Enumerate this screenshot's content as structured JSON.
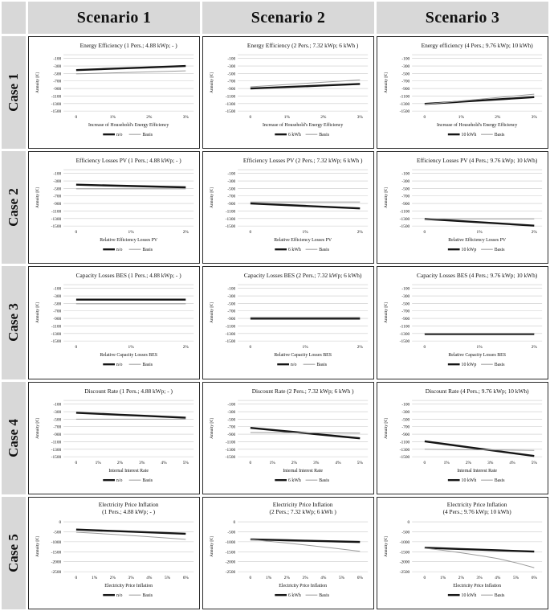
{
  "header": {
    "scenarios": [
      "Scenario 1",
      "Scenario 2",
      "Scenario 3"
    ]
  },
  "cases": [
    "Case 1",
    "Case 2",
    "Case 3",
    "Case 4",
    "Case 5"
  ],
  "colors": {
    "header_bg": "#d8d8d8",
    "panel_border": "#2a2a2a",
    "gridline": "#c9c9c9",
    "series_black": "#151515",
    "series_basis": "#9b9b9b"
  },
  "chart_data": [
    {
      "type": "line",
      "title": "Energy Efficiency (1 Pers.; 4.88 kWp; - )",
      "xlabel": "Increase of Household's Energy Efficiency",
      "ylabel": "Annuity [€]",
      "x": [
        "0",
        "1%",
        "2%",
        "3%"
      ],
      "yticks": [
        -100,
        -300,
        -500,
        -700,
        -900,
        -1100,
        -1300,
        -1500
      ],
      "ylim": [
        0,
        -1500
      ],
      "series": [
        {
          "name": "n/o",
          "color": "#151515",
          "width": 2.4,
          "values": [
            -410,
            -373,
            -337,
            -300
          ]
        },
        {
          "name": "Basis",
          "color": "#9b9b9b",
          "width": 1,
          "values": [
            -510,
            -483,
            -457,
            -430
          ]
        }
      ]
    },
    {
      "type": "line",
      "title": "Energy Efficiency (2 Pers.; 7.32 kWp; 6 kWh )",
      "xlabel": "Increase of Household's Energy Efficiency",
      "ylabel": "Annuity [€]",
      "x": [
        "0",
        "1%",
        "2%",
        "3%"
      ],
      "yticks": [
        -100,
        -300,
        -500,
        -700,
        -900,
        -1100,
        -1300,
        -1500
      ],
      "ylim": [
        0,
        -1500
      ],
      "series": [
        {
          "name": "6 kWh",
          "color": "#151515",
          "width": 2.4,
          "values": [
            -900,
            -860,
            -820,
            -780
          ]
        },
        {
          "name": "Basis",
          "color": "#9b9b9b",
          "width": 1,
          "values": [
            -855,
            -793,
            -732,
            -670
          ]
        }
      ]
    },
    {
      "type": "line",
      "title": "Energy efficiency (4 Pers.; 9.76 kWp; 10 kWh)",
      "xlabel": "Increase of Household's Energy Efficiency",
      "ylabel": "Annuity [€]",
      "x": [
        "0",
        "1%",
        "2%",
        "3%"
      ],
      "yticks": [
        -100,
        -300,
        -500,
        -700,
        -900,
        -1100,
        -1300,
        -1500
      ],
      "ylim": [
        0,
        -1500
      ],
      "series": [
        {
          "name": "10 kWh",
          "color": "#151515",
          "width": 2.4,
          "values": [
            -1310,
            -1250,
            -1190,
            -1130
          ]
        },
        {
          "name": "Basis",
          "color": "#9b9b9b",
          "width": 1,
          "values": [
            -1320,
            -1230,
            -1140,
            -1050
          ]
        }
      ]
    },
    {
      "type": "line",
      "title": "Efficiency Losses PV (1 Pers.; 4.88 kWp; - )",
      "xlabel": "Relative Efficiency Losses PV",
      "ylabel": "Annuity [€]",
      "x": [
        "0",
        "1%",
        "2%"
      ],
      "yticks": [
        -100,
        -300,
        -500,
        -700,
        -900,
        -1100,
        -1300,
        -1500
      ],
      "ylim": [
        0,
        -1500
      ],
      "series": [
        {
          "name": "n/o",
          "color": "#151515",
          "width": 2.4,
          "values": [
            -400,
            -435,
            -470
          ]
        },
        {
          "name": "Basis",
          "color": "#9b9b9b",
          "width": 1,
          "values": [
            -510,
            -510,
            -510
          ]
        }
      ]
    },
    {
      "type": "line",
      "title": "Efficiency Losses PV (2 Pers.; 7.32 kWp; 6 kWh )",
      "xlabel": "Relative Efficiency Losses PV",
      "ylabel": "Annuity [€]",
      "x": [
        "0",
        "1%",
        "2%"
      ],
      "yticks": [
        -100,
        -300,
        -500,
        -700,
        -900,
        -1100,
        -1300,
        -1500
      ],
      "ylim": [
        0,
        -1500
      ],
      "series": [
        {
          "name": "6 kWh",
          "color": "#151515",
          "width": 2.4,
          "values": [
            -900,
            -965,
            -1030
          ]
        },
        {
          "name": "Basis",
          "color": "#9b9b9b",
          "width": 1,
          "values": [
            -860,
            -860,
            -860
          ]
        }
      ]
    },
    {
      "type": "line",
      "title": "Efficiency Losses PV (4 Pers.; 9.76 kWp; 10 kWh)",
      "xlabel": "Relative Efficiency Losses PV",
      "ylabel": "Annuity [€]",
      "x": [
        "0",
        "1%",
        "2%"
      ],
      "yticks": [
        -100,
        -300,
        -500,
        -700,
        -900,
        -1100,
        -1300,
        -1500
      ],
      "ylim": [
        0,
        -1500
      ],
      "series": [
        {
          "name": "10 kWp",
          "color": "#151515",
          "width": 2.4,
          "values": [
            -1310,
            -1400,
            -1490
          ]
        },
        {
          "name": "Basis",
          "color": "#9b9b9b",
          "width": 1,
          "values": [
            -1310,
            -1310,
            -1310
          ]
        }
      ]
    },
    {
      "type": "line",
      "title": "Capacity Losses BES (1 Pers.; 4.88 kWp; - )",
      "xlabel": "Relative Capacity Losses BES",
      "ylabel": "Annuity [€]",
      "x": [
        "0",
        "1%",
        "2%"
      ],
      "yticks": [
        -100,
        -300,
        -500,
        -700,
        -900,
        -1100,
        -1300,
        -1500
      ],
      "ylim": [
        0,
        -1500
      ],
      "series": [
        {
          "name": "n/o",
          "color": "#151515",
          "width": 2.4,
          "values": [
            -400,
            -400,
            -400
          ]
        },
        {
          "name": "Basis",
          "color": "#9b9b9b",
          "width": 1,
          "values": [
            -510,
            -510,
            -510
          ]
        }
      ]
    },
    {
      "type": "line",
      "title": "Capacity Losses BES (2 Pers.; 7.32 kWp; 6 kWh)",
      "xlabel": "Relative Capacity Losses BES",
      "ylabel": "Annuity [€]",
      "x": [
        "0",
        "1%",
        "2%"
      ],
      "yticks": [
        -100,
        -300,
        -500,
        -700,
        -900,
        -1100,
        -1300,
        -1500
      ],
      "ylim": [
        0,
        -1500
      ],
      "series": [
        {
          "name": "n/o",
          "color": "#151515",
          "width": 2.4,
          "values": [
            -905,
            -905,
            -905
          ]
        },
        {
          "name": "Basis",
          "color": "#9b9b9b",
          "width": 1,
          "values": [
            -870,
            -870,
            -870
          ]
        }
      ]
    },
    {
      "type": "line",
      "title": "Capacity Losses BES (4 Pers.; 9.76 kWp; 10 kWh)",
      "xlabel": "Relative Capacity Losses BES",
      "ylabel": "Annuity [€]",
      "x": [
        "0",
        "1%",
        "2%"
      ],
      "yticks": [
        -100,
        -300,
        -500,
        -700,
        -900,
        -1100,
        -1300,
        -1500
      ],
      "ylim": [
        0,
        -1500
      ],
      "series": [
        {
          "name": "10 kWp",
          "color": "#151515",
          "width": 2.4,
          "values": [
            -1315,
            -1315,
            -1315
          ]
        },
        {
          "name": "Basis",
          "color": "#9b9b9b",
          "width": 1,
          "values": [
            -1300,
            -1300,
            -1300
          ]
        }
      ]
    },
    {
      "type": "line",
      "title": "Discount Rate (1 Pers.; 4.88 kWp; - )",
      "xlabel": "Internal Interest Rate",
      "ylabel": "Annuity [€]",
      "x": [
        "0",
        "1%",
        "2%",
        "3%",
        "4%",
        "5%"
      ],
      "yticks": [
        -100,
        -300,
        -500,
        -700,
        -900,
        -1100,
        -1300,
        -1500
      ],
      "ylim": [
        0,
        -1500
      ],
      "series": [
        {
          "name": "n/o",
          "color": "#151515",
          "width": 2.4,
          "values": [
            -330,
            -356,
            -382,
            -408,
            -434,
            -460
          ]
        },
        {
          "name": "Basis",
          "color": "#9b9b9b",
          "width": 1,
          "values": [
            -500,
            -500,
            -500,
            -500,
            -500,
            -500
          ]
        }
      ]
    },
    {
      "type": "line",
      "title": "Discount Rate (2 Pers.; 7.32 kWp; 6 kWh )",
      "xlabel": "Internal Interest Rate",
      "ylabel": "Annuity [€]",
      "x": [
        "0",
        "1%",
        "2%",
        "3%",
        "4%",
        "5%"
      ],
      "yticks": [
        -100,
        -300,
        -500,
        -700,
        -900,
        -1100,
        -1300,
        -1500
      ],
      "ylim": [
        0,
        -1500
      ],
      "series": [
        {
          "name": "6 kWh",
          "color": "#151515",
          "width": 2.4,
          "values": [
            -730,
            -786,
            -842,
            -898,
            -954,
            -1010
          ]
        },
        {
          "name": "Basis",
          "color": "#9b9b9b",
          "width": 1,
          "values": [
            -855,
            -858,
            -861,
            -864,
            -867,
            -870
          ]
        }
      ]
    },
    {
      "type": "line",
      "title": "Discount Rate (4 Pers.; 9.76 kWp; 10 kWh)",
      "xlabel": "Internal Interest Rate",
      "ylabel": "Annuity [€]",
      "x": [
        "0",
        "1%",
        "2%",
        "3%",
        "4%",
        "5%"
      ],
      "yticks": [
        -100,
        -300,
        -500,
        -700,
        -900,
        -1100,
        -1300,
        -1500
      ],
      "ylim": [
        0,
        -1500
      ],
      "series": [
        {
          "name": "10 kWh",
          "color": "#151515",
          "width": 2.4,
          "values": [
            -1090,
            -1168,
            -1246,
            -1324,
            -1402,
            -1480
          ]
        },
        {
          "name": "Basis",
          "color": "#9b9b9b",
          "width": 1,
          "values": [
            -1300,
            -1306,
            -1312,
            -1318,
            -1324,
            -1330
          ]
        }
      ]
    },
    {
      "type": "line",
      "title": "Electricity Price Inflation\n(1 Pers.; 4.88 kWp; - )",
      "xlabel": "Electricity Price Inflation",
      "ylabel": "Annuity [€]",
      "x": [
        "0",
        "1%",
        "2%",
        "3%",
        "4%",
        "5%",
        "6%"
      ],
      "yticks": [
        0,
        -500,
        -1000,
        -1500,
        -2000,
        -2500
      ],
      "ylim": [
        0,
        -2500
      ],
      "series": [
        {
          "name": "n/o",
          "color": "#151515",
          "width": 2.4,
          "values": [
            -390,
            -425,
            -460,
            -495,
            -530,
            -565,
            -600
          ]
        },
        {
          "name": "Basis",
          "color": "#9b9b9b",
          "width": 1,
          "values": [
            -520,
            -572,
            -628,
            -688,
            -748,
            -812,
            -880
          ]
        }
      ]
    },
    {
      "type": "line",
      "title": "Electricity Price Inflation\n(2 Pers.; 7.32 kWp; 6 kWh )",
      "xlabel": "Electricity Price Inflation",
      "ylabel": "Annuity [€]",
      "x": [
        "0",
        "1%",
        "2%",
        "3%",
        "4%",
        "5%",
        "6%"
      ],
      "yticks": [
        0,
        -500,
        -1000,
        -1500,
        -2000,
        -2500
      ],
      "ylim": [
        0,
        -2500
      ],
      "series": [
        {
          "name": "6 kWh",
          "color": "#151515",
          "width": 2.4,
          "values": [
            -880,
            -902,
            -924,
            -946,
            -968,
            -990,
            -1010
          ]
        },
        {
          "name": "Basis",
          "color": "#9b9b9b",
          "width": 1,
          "values": [
            -890,
            -975,
            -1065,
            -1160,
            -1260,
            -1367,
            -1480
          ]
        }
      ]
    },
    {
      "type": "line",
      "title": "Electricity Price Inflation\n(4 Pers.; 9.76 kWp; 10 kWh)",
      "xlabel": "Electricity Price Inflation",
      "ylabel": "Annuity [€]",
      "x": [
        "0",
        "1%",
        "2%",
        "3%",
        "4%",
        "5%",
        "6%"
      ],
      "yticks": [
        0,
        -500,
        -1000,
        -1500,
        -2000,
        -2500
      ],
      "ylim": [
        0,
        -2500
      ],
      "series": [
        {
          "name": "10 kWh",
          "color": "#151515",
          "width": 2.4,
          "values": [
            -1300,
            -1332,
            -1364,
            -1396,
            -1428,
            -1460,
            -1490
          ]
        },
        {
          "name": "Basis",
          "color": "#9b9b9b",
          "width": 1,
          "values": [
            -1320,
            -1430,
            -1555,
            -1690,
            -1840,
            -2050,
            -2300
          ]
        }
      ]
    }
  ]
}
